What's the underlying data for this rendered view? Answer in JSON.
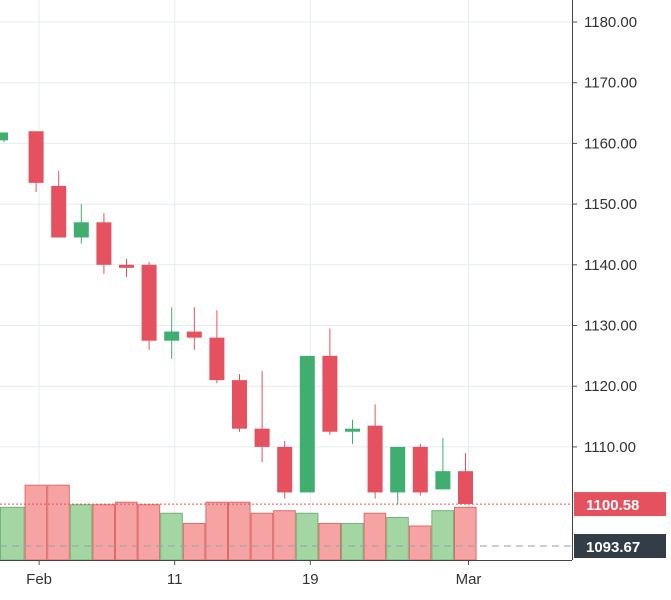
{
  "chart_data": {
    "type": "candlestick",
    "title": "",
    "ylim": [
      1092,
      1184
    ],
    "y_ticks": [
      "1180.00",
      "1170.00",
      "1160.00",
      "1150.00",
      "1140.00",
      "1130.00",
      "1120.00",
      "1110.00"
    ],
    "x_ticks": [
      {
        "label": "Feb",
        "index": 1
      },
      {
        "label": "11",
        "index": 7
      },
      {
        "label": "19",
        "index": 13
      },
      {
        "label": "Mar",
        "index": 20
      }
    ],
    "candles": [
      {
        "o": 1160.5,
        "h": 1161.8,
        "l": 1160.2,
        "c": 1161.8
      },
      {
        "o": 1162.0,
        "h": 1162.0,
        "l": 1152.0,
        "c": 1153.5
      },
      {
        "o": 1153.0,
        "h": 1155.5,
        "l": 1144.5,
        "c": 1144.5
      },
      {
        "o": 1144.5,
        "h": 1150.0,
        "l": 1143.5,
        "c": 1147.0
      },
      {
        "o": 1147.0,
        "h": 1148.5,
        "l": 1138.5,
        "c": 1140.0
      },
      {
        "o": 1140.0,
        "h": 1141.0,
        "l": 1138.0,
        "c": 1139.5
      },
      {
        "o": 1140.0,
        "h": 1140.5,
        "l": 1126.0,
        "c": 1127.5
      },
      {
        "o": 1127.5,
        "h": 1133.0,
        "l": 1124.5,
        "c": 1129.0
      },
      {
        "o": 1129.0,
        "h": 1133.0,
        "l": 1126.0,
        "c": 1128.0
      },
      {
        "o": 1128.0,
        "h": 1132.5,
        "l": 1120.5,
        "c": 1121.0
      },
      {
        "o": 1121.0,
        "h": 1122.0,
        "l": 1112.5,
        "c": 1113.0
      },
      {
        "o": 1113.0,
        "h": 1122.5,
        "l": 1107.5,
        "c": 1110.0
      },
      {
        "o": 1110.0,
        "h": 1111.0,
        "l": 1101.5,
        "c": 1102.5
      },
      {
        "o": 1102.5,
        "h": 1125.0,
        "l": 1102.5,
        "c": 1125.0
      },
      {
        "o": 1125.0,
        "h": 1129.5,
        "l": 1112.0,
        "c": 1112.5
      },
      {
        "o": 1112.5,
        "h": 1114.5,
        "l": 1110.5,
        "c": 1113.0
      },
      {
        "o": 1113.5,
        "h": 1117.0,
        "l": 1101.5,
        "c": 1102.5
      },
      {
        "o": 1102.5,
        "h": 1110.0,
        "l": 1100.5,
        "c": 1110.0
      },
      {
        "o": 1110.0,
        "h": 1110.5,
        "l": 1102.0,
        "c": 1102.5
      },
      {
        "o": 1103.0,
        "h": 1111.5,
        "l": 1103.0,
        "c": 1106.0
      },
      {
        "o": 1106.0,
        "h": 1109.0,
        "l": 1100.5,
        "c": 1100.6
      }
    ],
    "volume": [
      {
        "v": 0.62,
        "up": true
      },
      {
        "v": 0.88,
        "up": false
      },
      {
        "v": 0.88,
        "up": false
      },
      {
        "v": 0.65,
        "up": true
      },
      {
        "v": 0.65,
        "up": false
      },
      {
        "v": 0.68,
        "up": false
      },
      {
        "v": 0.65,
        "up": false
      },
      {
        "v": 0.55,
        "up": true
      },
      {
        "v": 0.43,
        "up": false
      },
      {
        "v": 0.68,
        "up": false
      },
      {
        "v": 0.68,
        "up": false
      },
      {
        "v": 0.55,
        "up": false
      },
      {
        "v": 0.58,
        "up": false
      },
      {
        "v": 0.55,
        "up": true
      },
      {
        "v": 0.43,
        "up": false
      },
      {
        "v": 0.43,
        "up": true
      },
      {
        "v": 0.55,
        "up": false
      },
      {
        "v": 0.5,
        "up": true
      },
      {
        "v": 0.4,
        "up": false
      },
      {
        "v": 0.58,
        "up": true
      },
      {
        "v": 0.62,
        "up": false
      }
    ],
    "last_price": {
      "value": 1100.58,
      "label": "1100.58",
      "color": "#e5515e"
    },
    "ref_price": {
      "value": 1093.67,
      "label": "1093.67",
      "color": "#333d47"
    },
    "grid": true,
    "colors": {
      "up": "#3fae6f",
      "down": "#e5515e",
      "volume_up": "#a4d6a4",
      "volume_down": "#f6a3a3",
      "volume_up_edge": "#6fb47a",
      "volume_down_edge": "#e06a6a",
      "grid": "#e3ecf2"
    }
  }
}
